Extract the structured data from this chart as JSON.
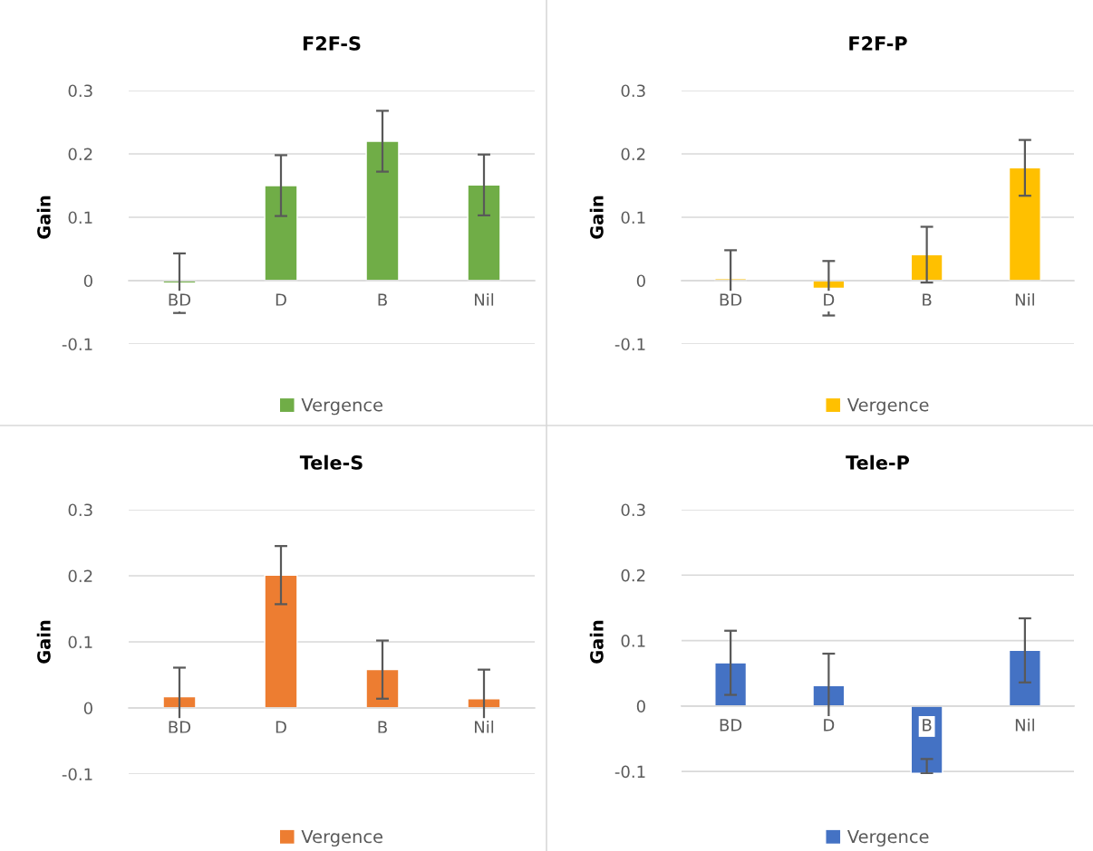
{
  "chart_data": [
    {
      "type": "bar",
      "title": "F2F-S",
      "ylabel": "Gain",
      "categories": [
        "BD",
        "D",
        "B",
        "Nil"
      ],
      "series": [
        {
          "name": "Vergence",
          "color": "#70ad47",
          "values": [
            -0.004,
            0.15,
            0.22,
            0.151
          ],
          "errors": [
            0.047,
            0.048,
            0.048,
            0.048
          ]
        }
      ],
      "ylim": [
        -0.1,
        0.3
      ],
      "yticks": [
        -0.1,
        0,
        0.1,
        0.2,
        0.3
      ],
      "grid": "y",
      "legend": "bottom"
    },
    {
      "type": "bar",
      "title": "F2F-P",
      "ylabel": "Gain",
      "categories": [
        "BD",
        "D",
        "B",
        "Nil"
      ],
      "series": [
        {
          "name": "Vergence",
          "color": "#ffc000",
          "values": [
            0.003,
            -0.012,
            0.041,
            0.178
          ],
          "errors": [
            0.045,
            0.043,
            0.044,
            0.044
          ]
        }
      ],
      "ylim": [
        -0.1,
        0.3
      ],
      "yticks": [
        -0.1,
        0,
        0.1,
        0.2,
        0.3
      ],
      "grid": "y",
      "legend": "bottom"
    },
    {
      "type": "bar",
      "title": "Tele-S",
      "ylabel": "Gain",
      "categories": [
        "BD",
        "D",
        "B",
        "Nil"
      ],
      "series": [
        {
          "name": "Vergence",
          "color": "#ed7d31",
          "values": [
            0.017,
            0.201,
            0.058,
            0.014
          ],
          "errors": [
            0.044,
            0.044,
            0.044,
            0.044
          ]
        }
      ],
      "ylim": [
        -0.1,
        0.3
      ],
      "yticks": [
        -0.1,
        0,
        0.1,
        0.2,
        0.3
      ],
      "grid": "y",
      "legend": "bottom"
    },
    {
      "type": "bar",
      "title": "Tele-P",
      "ylabel": "Gain",
      "categories": [
        "BD",
        "D",
        "B",
        "Nil"
      ],
      "series": [
        {
          "name": "Vergence",
          "color": "#4472c4",
          "values": [
            0.066,
            0.031,
            -0.103,
            0.085
          ],
          "errors": [
            0.049,
            0.049,
            [
              -0.103,
              -0.081
            ],
            0.049
          ]
        }
      ],
      "ylim": [
        -0.104,
        0.3
      ],
      "yticks": [
        -0.1,
        0,
        0.1,
        0.2,
        0.3
      ],
      "grid": "y",
      "legend": "bottom"
    }
  ]
}
